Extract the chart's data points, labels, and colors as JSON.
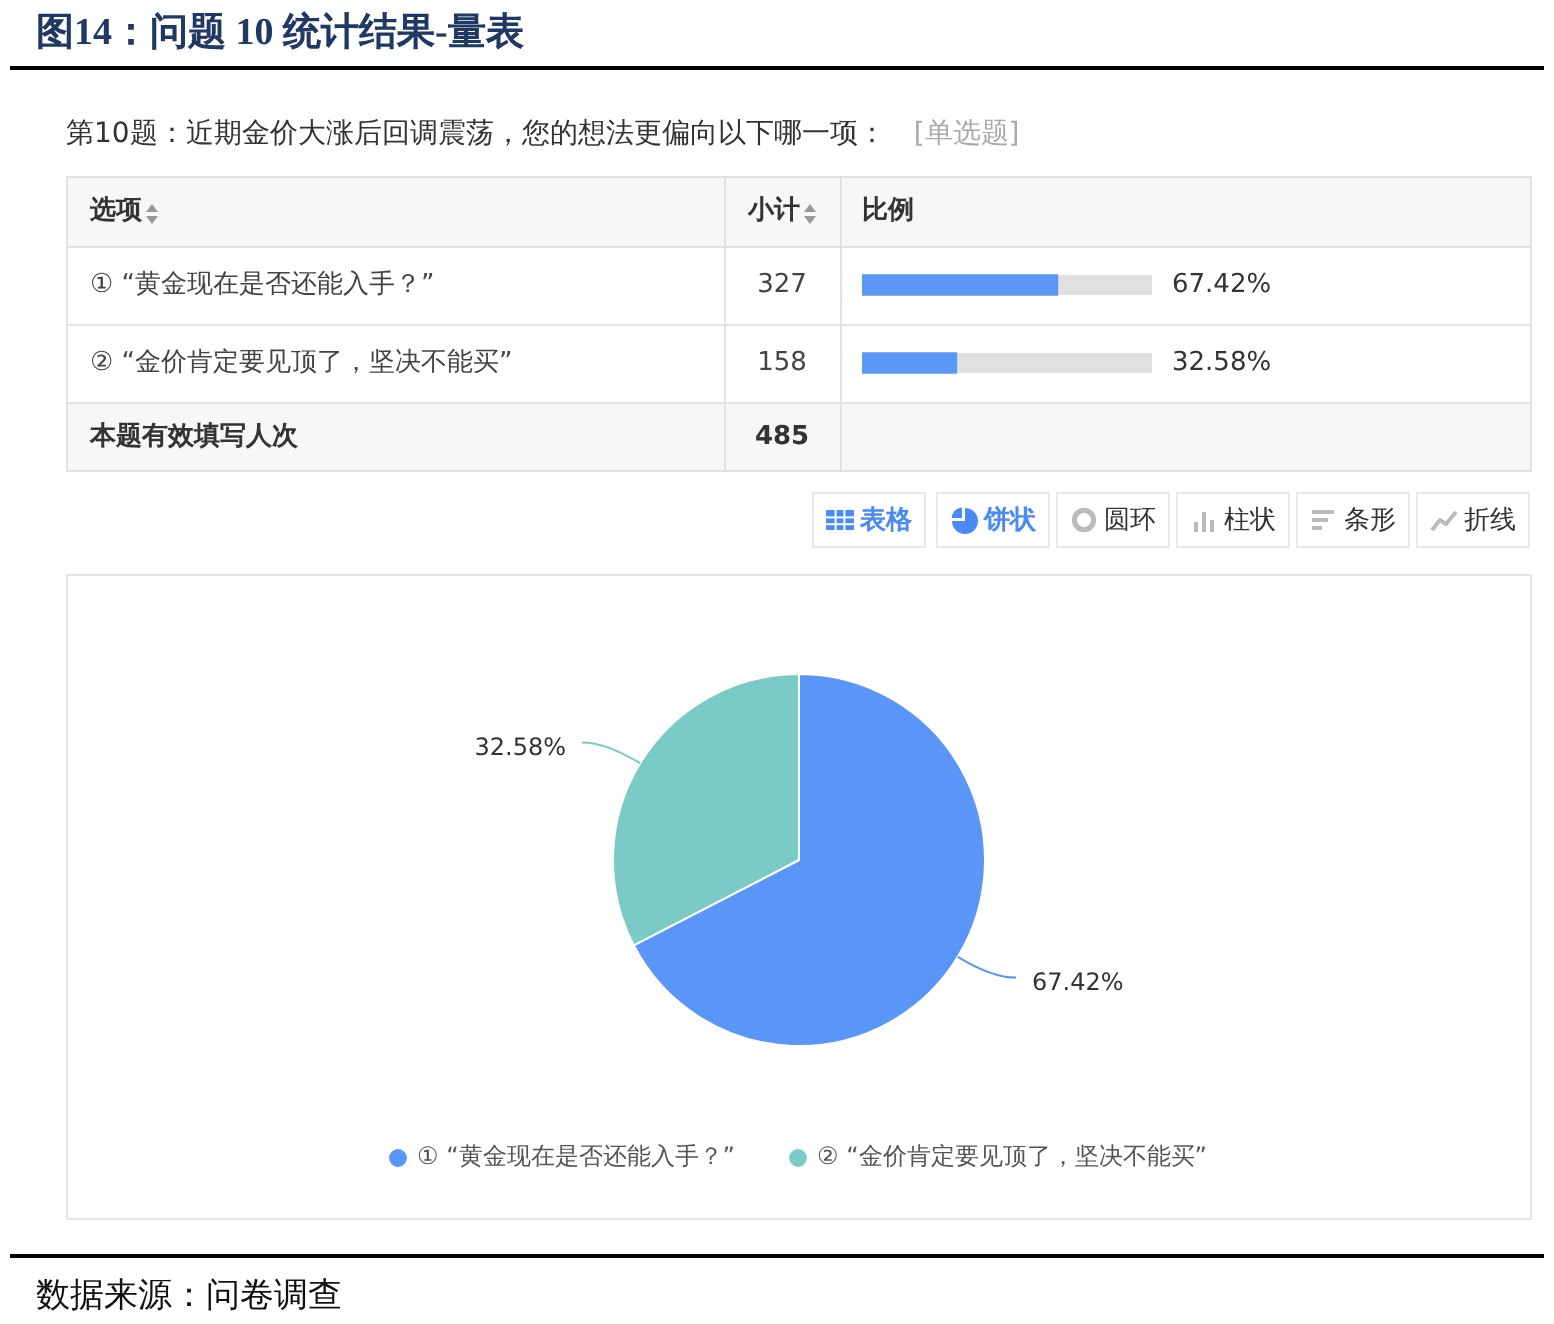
{
  "chart_data": [
    {
      "type": "bar",
      "orientation": "horizontal",
      "title": "图14：问题 10 统计结果-量表",
      "subtitle": "第10题：近期金价大涨后回调震荡，您的想法更偏向以下哪一项：",
      "categories": [
        "① “黄金现在是否还能入手？”",
        "② “金价肯定要见顶了，坚决不能买”"
      ],
      "values": [
        67.42,
        32.58
      ],
      "color": "#5b97f5",
      "value_labels": [
        "67.42%",
        "32.58%"
      ],
      "xlim": [
        0,
        100
      ],
      "tick_labels": "y",
      "annotations": [
        "[单选题]",
        "选项",
        "小计",
        "比例",
        "327",
        "158",
        "本题有效填写人次",
        "485"
      ]
    },
    {
      "type": "pie",
      "categories": [
        "① “黄金现在是否还能入手？”",
        "② “金价肯定要见顶了，坚决不能买”"
      ],
      "values": [
        67.42,
        32.58
      ],
      "colors": [
        "#5996f7",
        "#7acbc6"
      ],
      "value_labels": [
        "67.42%",
        "32.58%"
      ],
      "legend": "bottom",
      "annotations": [
        "表格",
        "饼状",
        "圆环",
        "柱状",
        "条形",
        "折线",
        "数据来源：问卷调查"
      ]
    }
  ]
}
